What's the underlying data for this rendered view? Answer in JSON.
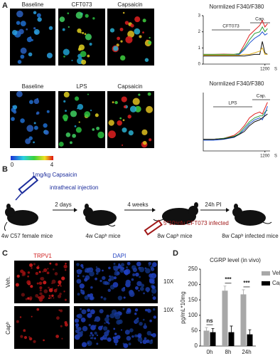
{
  "panels": {
    "a": {
      "label": "A",
      "row1": [
        "Baseline",
        "CFT073",
        "Capsaicin"
      ],
      "row2": [
        "Baseline",
        "LPS",
        "Capsaicin"
      ],
      "colorbar_min": 0,
      "colorbar_max": 4
    },
    "b": {
      "label": "B",
      "dose": "1mg/kg Capsaicin",
      "route": "intrathecal injection",
      "step1": "2 days",
      "step2": "4 weeks",
      "step3": "24h PI",
      "infection": "5*10⁸cfu CFT073 infected",
      "mice": [
        "4w C57 female mice",
        "4w Capᵇ mice",
        "8w Capᵇ mice",
        "8w Capᵇ infected mice"
      ]
    },
    "c": {
      "label": "C",
      "stain1": "TRPV1",
      "stain2": "DAPI",
      "row1": "Veh.",
      "row2": "Capᵇ",
      "mag1": "10X",
      "mag2": "10X"
    },
    "d": {
      "label": "D"
    }
  },
  "chart_data": [
    {
      "type": "line",
      "title": "Normlized F340/F380",
      "x_label": "S",
      "annotations": [
        "CFT073",
        "Cap."
      ],
      "x": [
        0,
        200,
        400,
        600,
        700,
        800,
        900,
        1000,
        1100,
        1150,
        1200,
        1250
      ],
      "xlim": [
        0,
        1300
      ],
      "xticks": [
        1200
      ],
      "ylim": [
        0,
        3
      ],
      "yticks": [
        0,
        1,
        2,
        3
      ],
      "series": [
        {
          "color": "#e02020",
          "values": [
            0.6,
            0.6,
            0.62,
            0.6,
            0.65,
            1.2,
            1.8,
            2.1,
            2.4,
            2.7,
            2.3,
            2.5
          ]
        },
        {
          "color": "#2a9d3a",
          "values": [
            0.6,
            0.6,
            0.6,
            0.6,
            0.65,
            1.0,
            1.5,
            1.9,
            2.0,
            2.3,
            2.0,
            2.2
          ]
        },
        {
          "color": "#1a4fd0",
          "values": [
            0.55,
            0.55,
            0.55,
            0.55,
            0.6,
            0.9,
            1.3,
            1.6,
            1.8,
            2.0,
            1.8,
            1.9
          ]
        },
        {
          "color": "#111111",
          "values": [
            0.5,
            0.5,
            0.5,
            0.5,
            0.5,
            0.5,
            0.55,
            0.6,
            0.6,
            1.4,
            0.7,
            0.6
          ]
        },
        {
          "color": "#e0b020",
          "values": [
            0.55,
            0.55,
            0.55,
            0.55,
            0.55,
            0.6,
            0.6,
            0.7,
            0.8,
            1.0,
            0.6,
            0.6
          ]
        }
      ]
    },
    {
      "type": "line",
      "title": "Normlized F340/F380",
      "x_label": "S",
      "annotations": [
        "LPS",
        "Cap."
      ],
      "x": [
        0,
        200,
        400,
        600,
        700,
        800,
        900,
        1000,
        1100,
        1150,
        1200,
        1250
      ],
      "xlim": [
        0,
        1300
      ],
      "xticks": [
        1200
      ],
      "ylim": [
        0,
        3
      ],
      "series": [
        {
          "color": "#e02020",
          "values": [
            0.6,
            0.6,
            0.65,
            0.8,
            1.0,
            1.3,
            1.7,
            1.9,
            2.0,
            1.9,
            2.2,
            2.5
          ]
        },
        {
          "color": "#2a9d3a",
          "values": [
            0.6,
            0.6,
            0.65,
            0.75,
            0.9,
            1.2,
            1.5,
            1.7,
            1.8,
            1.8,
            2.0,
            2.1
          ]
        },
        {
          "color": "#1a4fd0",
          "values": [
            0.55,
            0.55,
            0.6,
            0.7,
            0.85,
            1.1,
            1.4,
            1.6,
            1.7,
            1.6,
            1.9,
            2.3
          ]
        },
        {
          "color": "#111111",
          "values": [
            0.6,
            0.6,
            0.62,
            0.72,
            0.85,
            1.0,
            1.3,
            1.5,
            1.6,
            1.7,
            1.8,
            1.9
          ]
        }
      ]
    },
    {
      "type": "bar",
      "title": "CGRP level (in  vivo)",
      "y_label": "pg/mL*10mg",
      "categories": [
        "0h",
        "8h",
        "24h"
      ],
      "annotations": [
        "ns",
        "***",
        "***"
      ],
      "ylim": [
        0,
        250
      ],
      "yticks": [
        0,
        50,
        100,
        150,
        200,
        250
      ],
      "series": [
        {
          "name": "Veh.",
          "color": "#a8a8a8",
          "values": [
            50,
            180,
            168
          ],
          "errors": [
            10,
            15,
            15
          ]
        },
        {
          "name": "Capᵇ",
          "color": "#000000",
          "values": [
            45,
            45,
            38
          ],
          "errors": [
            12,
            20,
            15
          ]
        }
      ]
    }
  ]
}
